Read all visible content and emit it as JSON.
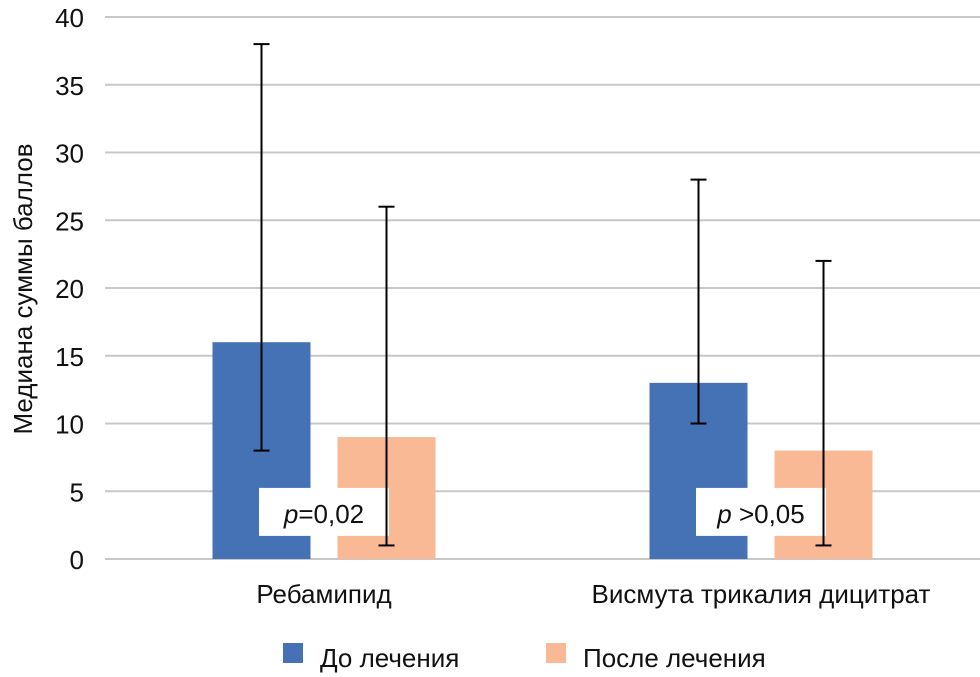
{
  "chart_data": {
    "type": "bar",
    "title": "",
    "xlabel": "",
    "ylabel": "Медиана суммы баллов",
    "ylim": [
      0,
      40
    ],
    "yticks": [
      0,
      5,
      10,
      15,
      20,
      25,
      30,
      35,
      40
    ],
    "grid": true,
    "categories": [
      "Ребамипид",
      "Висмута трикалия дицитрат"
    ],
    "series": [
      {
        "name": "До лечения",
        "color": "#4472b4",
        "values": [
          16,
          13
        ],
        "error_low": [
          8,
          10
        ],
        "error_high": [
          38,
          28
        ]
      },
      {
        "name": "После лечения",
        "color": "#f8b994",
        "values": [
          9,
          8
        ],
        "error_low": [
          1,
          1
        ],
        "error_high": [
          26,
          22
        ]
      }
    ],
    "annotations": [
      {
        "category": "Ребамипид",
        "italic": "p",
        "text": "=0,02"
      },
      {
        "category": "Висмута трикалия дицитрат",
        "italic": "p",
        "text": " >0,05"
      }
    ],
    "legend": {
      "position": "bottom",
      "items": [
        "До лечения",
        "После лечения"
      ]
    }
  }
}
